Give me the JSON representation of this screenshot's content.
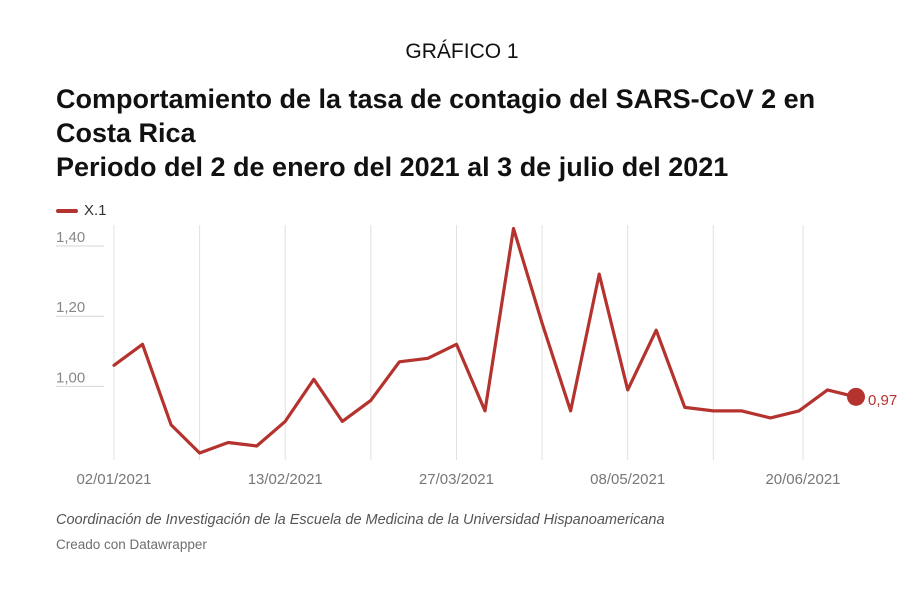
{
  "kicker": "GRÁFICO 1",
  "title_lines": [
    "Comportamiento de la tasa de contagio del SARS-CoV 2 en",
    "Costa Rica",
    "Periodo del 2 de enero del 2021 al 3 de julio del 2021"
  ],
  "legend_label": "X.1",
  "notes": "Coordinación de Investigación de la Escuela de Medicina de la Universidad Hispanoamericana",
  "byline": "Creado con Datawrapper",
  "colors": {
    "series": "#b5332e",
    "grid": "#e0e0e0",
    "tick": "#888888"
  },
  "chart_data": {
    "type": "line",
    "x": [
      "2021-01-02",
      "2021-01-09",
      "2021-01-16",
      "2021-01-23",
      "2021-01-30",
      "2021-02-06",
      "2021-02-13",
      "2021-02-20",
      "2021-02-27",
      "2021-03-06",
      "2021-03-13",
      "2021-03-20",
      "2021-03-27",
      "2021-04-03",
      "2021-04-10",
      "2021-04-17",
      "2021-04-24",
      "2021-05-01",
      "2021-05-08",
      "2021-05-15",
      "2021-05-22",
      "2021-05-29",
      "2021-06-05",
      "2021-06-12",
      "2021-06-19",
      "2021-06-26",
      "2021-07-03"
    ],
    "series": [
      {
        "name": "X.1",
        "values": [
          1.06,
          1.12,
          0.89,
          0.81,
          0.84,
          0.83,
          0.9,
          1.02,
          0.9,
          0.96,
          1.07,
          1.08,
          1.12,
          0.93,
          1.45,
          1.18,
          0.93,
          1.32,
          0.99,
          1.16,
          0.94,
          0.93,
          0.93,
          0.91,
          0.93,
          0.99,
          0.97
        ]
      }
    ],
    "x_ticks": [
      "2021-01-02",
      "2021-02-13",
      "2021-03-27",
      "2021-05-08",
      "2021-06-20"
    ],
    "x_tick_labels": [
      "02/01/2021",
      "13/02/2021",
      "27/03/2021",
      "08/05/2021",
      "20/06/2021"
    ],
    "x_gridlines": [
      "2021-01-02",
      "2021-01-23",
      "2021-02-13",
      "2021-03-06",
      "2021-03-27",
      "2021-04-17",
      "2021-05-08",
      "2021-05-29",
      "2021-06-20"
    ],
    "y_ticks": [
      1.0,
      1.2,
      1.4
    ],
    "y_tick_labels": [
      "1,00",
      "1,20",
      "1,40"
    ],
    "ylim": [
      0.79,
      1.46
    ],
    "end_label": "0,97",
    "grid": true,
    "legend_position": "top-left"
  }
}
